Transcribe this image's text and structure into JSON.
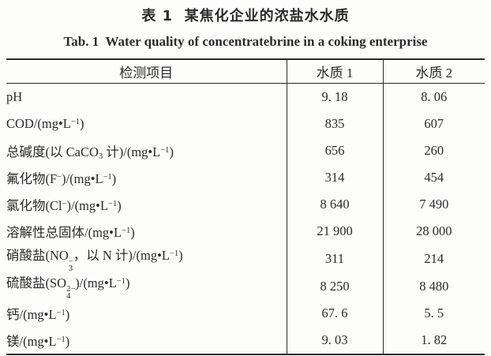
{
  "doc": {
    "title_zh": "表 1  某焦化企业的浓盐水水质",
    "title_en": "Tab. 1  Water quality of concentratebrine in a coking enterprise"
  },
  "table": {
    "headers": [
      "检测项目",
      "水质 1",
      "水质 2"
    ],
    "rows": [
      {
        "label": [
          [
            "t",
            "pH"
          ]
        ],
        "values": [
          "9. 18",
          "8. 06"
        ]
      },
      {
        "label": [
          [
            "t",
            "COD/(mg•L"
          ],
          [
            "sup",
            "−1"
          ],
          [
            "t",
            ")"
          ]
        ],
        "values": [
          "835",
          "607"
        ]
      },
      {
        "label": [
          [
            "t",
            "总碱度(以 CaCO"
          ],
          [
            "sub",
            "3"
          ],
          [
            "t",
            " 计)/(mg•L"
          ],
          [
            "sup",
            "−1"
          ],
          [
            "t",
            ")"
          ]
        ],
        "values": [
          "656",
          "260"
        ]
      },
      {
        "label": [
          [
            "t",
            "氟化物(F"
          ],
          [
            "sup",
            "−"
          ],
          [
            "t",
            ")/(mg•L"
          ],
          [
            "sup",
            "−1"
          ],
          [
            "t",
            ")"
          ]
        ],
        "values": [
          "314",
          "454"
        ]
      },
      {
        "label": [
          [
            "t",
            "氯化物(Cl"
          ],
          [
            "sup",
            "−"
          ],
          [
            "t",
            ")/(mg•L"
          ],
          [
            "sup",
            "−1"
          ],
          [
            "t",
            ")"
          ]
        ],
        "values": [
          "8 640",
          "7 490"
        ]
      },
      {
        "label": [
          [
            "t",
            "溶解性总固体/(mg•L"
          ],
          [
            "sup",
            "−1"
          ],
          [
            "t",
            ")"
          ]
        ],
        "values": [
          "21 900",
          "28 000"
        ]
      },
      {
        "label": [
          [
            "t",
            "硝酸盐(NO"
          ],
          [
            "stack",
            "−",
            "3"
          ],
          [
            "t",
            "，以 N 计)/(mg•L"
          ],
          [
            "sup",
            "−1"
          ],
          [
            "t",
            ")"
          ]
        ],
        "values": [
          "311",
          "214"
        ]
      },
      {
        "label": [
          [
            "t",
            "硫酸盐(SO"
          ],
          [
            "stack",
            "2−",
            "4"
          ],
          [
            "t",
            ")/(mg•L"
          ],
          [
            "sup",
            "−1"
          ],
          [
            "t",
            ")"
          ]
        ],
        "values": [
          "8 250",
          "8 480"
        ]
      },
      {
        "label": [
          [
            "t",
            "钙/(mg•L"
          ],
          [
            "sup",
            "−1"
          ],
          [
            "t",
            ")"
          ]
        ],
        "values": [
          "67. 6",
          "5. 5"
        ]
      },
      {
        "label": [
          [
            "t",
            "镁/(mg•L"
          ],
          [
            "sup",
            "−1"
          ],
          [
            "t",
            ")"
          ]
        ],
        "values": [
          "9. 03",
          "1. 82"
        ]
      }
    ]
  },
  "colors": {
    "text": "#2b2b2b",
    "border": "#2a2a2a",
    "background": "#fdfdfc"
  }
}
